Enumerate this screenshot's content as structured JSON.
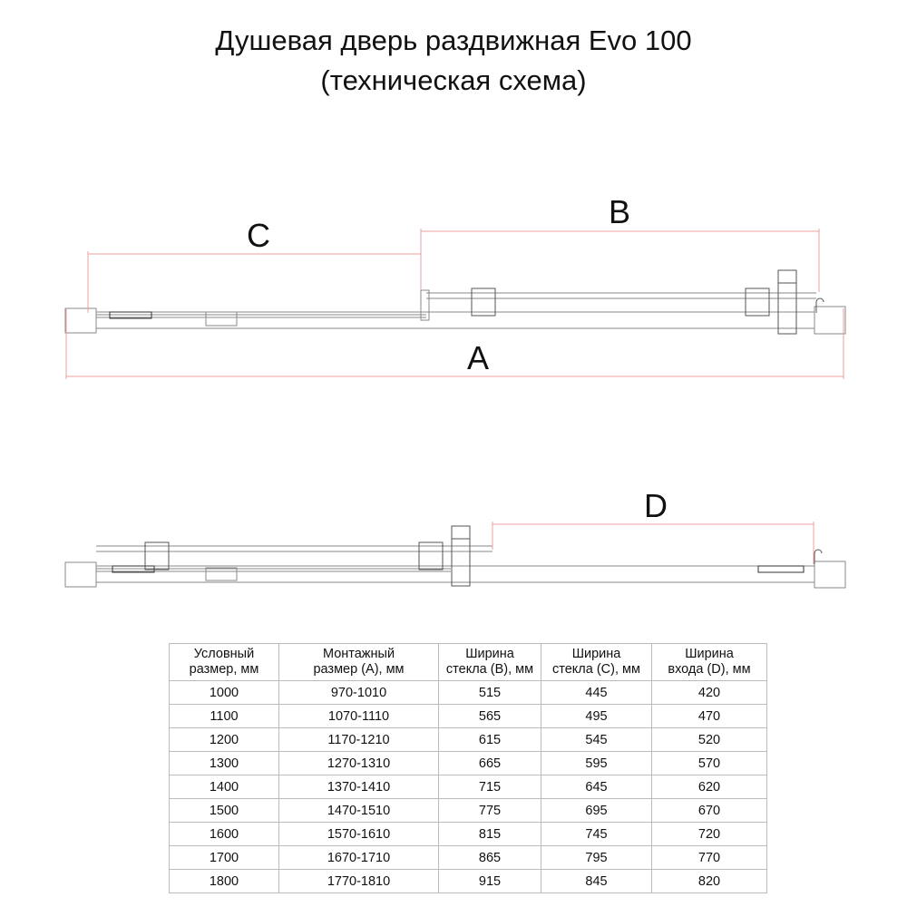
{
  "title": {
    "line1": "Душевая дверь раздвижная Evo 100",
    "line2": "(техническая схема)"
  },
  "diagram": {
    "labels": {
      "A": "A",
      "B": "B",
      "C": "C",
      "D": "D"
    },
    "colors": {
      "dimension": "#e8a0a0",
      "outline": "#888888",
      "part": "#333333"
    }
  },
  "table": {
    "headers": [
      [
        "Условный",
        "размер, мм"
      ],
      [
        "Монтажный",
        "размер (A), мм"
      ],
      [
        "Ширина",
        "стекла (B), мм"
      ],
      [
        "Ширина",
        "стекла (C), мм"
      ],
      [
        "Ширина",
        "входа (D), мм"
      ]
    ],
    "rows": [
      [
        "1000",
        "970-1010",
        "515",
        "445",
        "420"
      ],
      [
        "1100",
        "1070-1110",
        "565",
        "495",
        "470"
      ],
      [
        "1200",
        "1170-1210",
        "615",
        "545",
        "520"
      ],
      [
        "1300",
        "1270-1310",
        "665",
        "595",
        "570"
      ],
      [
        "1400",
        "1370-1410",
        "715",
        "645",
        "620"
      ],
      [
        "1500",
        "1470-1510",
        "775",
        "695",
        "670"
      ],
      [
        "1600",
        "1570-1610",
        "815",
        "745",
        "720"
      ],
      [
        "1700",
        "1670-1710",
        "865",
        "795",
        "770"
      ],
      [
        "1800",
        "1770-1810",
        "915",
        "845",
        "820"
      ]
    ]
  }
}
